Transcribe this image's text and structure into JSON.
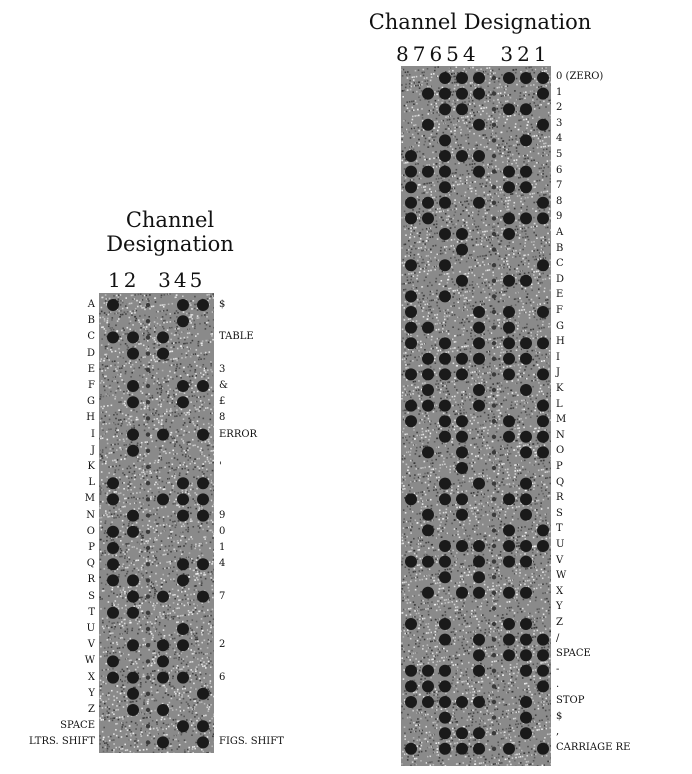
{
  "left_tape": {
    "title_line1": "Channel",
    "title_line2": "Designation",
    "channel_numbers": "12  345",
    "left_labels": [
      "A",
      "B",
      "C",
      "D",
      "E",
      "F",
      "G",
      "H",
      "I",
      "J",
      "K",
      "L",
      "M",
      "N",
      "O",
      "P",
      "Q",
      "R",
      "S",
      "T",
      "U",
      "V",
      "W",
      "X",
      "Y",
      "Z",
      "SPACE",
      "LTRS. SHIFT"
    ],
    "right_labels": [
      "$",
      "TABLE",
      "3",
      "&",
      "£",
      "8",
      "ERROR",
      "'",
      "9",
      "0",
      "1",
      "4",
      "7",
      "2",
      "6",
      "FIGS. SHIFT"
    ]
  },
  "right_tape": {
    "title": "Channel Designation",
    "channel_numbers": "87654  321",
    "right_labels": [
      "0 (ZERO)",
      "1",
      "2",
      "3",
      "4",
      "5",
      "6",
      "7",
      "8",
      "9",
      "A",
      "B",
      "C",
      "D",
      "E",
      "F",
      "G",
      "H",
      "I",
      "J",
      "K",
      "L",
      "M",
      "N",
      "O",
      "P",
      "Q",
      "R",
      "S",
      "T",
      "U",
      "V",
      "W",
      "X",
      "Y",
      "Z",
      "/",
      "SPACE",
      "-",
      ".",
      "STOP",
      "$",
      ",",
      "CARRIAGE RE"
    ]
  },
  "colors": {
    "tape_bg": "#8a8a8a",
    "hole": "#1a1a1a",
    "text": "#111111"
  }
}
